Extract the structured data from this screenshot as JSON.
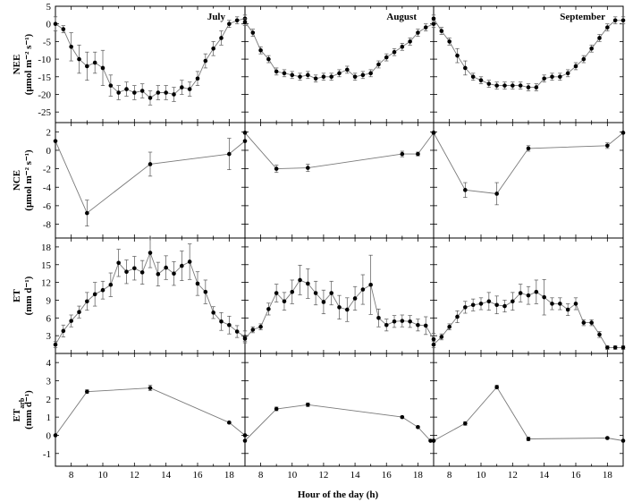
{
  "figure": {
    "x_label": "Hour of the day (h)",
    "months": [
      "July",
      "August",
      "September"
    ]
  },
  "chart_data": {
    "type": "line",
    "xlim": [
      7,
      19
    ],
    "x_ticks": [
      8,
      10,
      12,
      14,
      16,
      18
    ],
    "rows": [
      {
        "key": "NEE",
        "ylabel_main": "NEE",
        "ylabel_unit": "(μmol m⁻² s⁻¹)",
        "ylim": [
          -28,
          5
        ],
        "y_ticks": [
          5,
          0,
          -5,
          -10,
          -15,
          -20,
          -25
        ],
        "panels": [
          {
            "month": "July",
            "x": [
              7,
              7.5,
              8,
              8.5,
              9,
              9.5,
              10,
              10.5,
              11,
              11.5,
              12,
              12.5,
              13,
              13.5,
              14,
              14.5,
              15,
              15.5,
              16,
              16.5,
              17,
              17.5,
              18,
              18.5,
              19
            ],
            "y": [
              0,
              -1.5,
              -6.5,
              -10,
              -12,
              -11,
              -12.5,
              -17.5,
              -19.5,
              -18.5,
              -19.5,
              -19,
              -21,
              -19.5,
              -19.5,
              -20,
              -18,
              -18.5,
              -15.5,
              -10.5,
              -7,
              -4,
              0,
              1,
              1.5
            ],
            "err": [
              2,
              1,
              4,
              4,
              4,
              3,
              5,
              3,
              2,
              2,
              2,
              2,
              2,
              2,
              2,
              2,
              2,
              2,
              2,
              2,
              2,
              2,
              1,
              1,
              1
            ]
          },
          {
            "month": "August",
            "x": [
              7,
              7.5,
              8,
              8.5,
              9,
              9.5,
              10,
              10.5,
              11,
              11.5,
              12,
              12.5,
              13,
              13.5,
              14,
              14.5,
              15,
              15.5,
              16,
              16.5,
              17,
              17.5,
              18,
              18.5,
              19
            ],
            "y": [
              0.5,
              -2.5,
              -7.5,
              -10,
              -13.5,
              -14,
              -14.5,
              -15,
              -14.5,
              -15.5,
              -15,
              -15,
              -14,
              -13,
              -15,
              -14.5,
              -14,
              -11.5,
              -9.5,
              -8,
              -6.5,
              -5,
              -2.5,
              -1,
              0
            ],
            "err": [
              1,
              1,
              1,
              1,
              1,
              1,
              1,
              1,
              1,
              1,
              1,
              1,
              1,
              1,
              1,
              1,
              1,
              1,
              1,
              1,
              1,
              1,
              1,
              1,
              1
            ]
          },
          {
            "month": "September",
            "x": [
              7,
              7.5,
              8,
              8.5,
              9,
              9.5,
              10,
              10.5,
              11,
              11.5,
              12,
              12.5,
              13,
              13.5,
              14,
              14.5,
              15,
              15.5,
              16,
              16.5,
              17,
              17.5,
              18,
              18.5,
              19
            ],
            "y": [
              1.5,
              -2,
              -5,
              -9,
              -12.5,
              -15,
              -16,
              -17,
              -17.5,
              -17.5,
              -17.5,
              -17.5,
              -18,
              -18,
              -15.5,
              -15,
              -15,
              -14,
              -12,
              -10,
              -7,
              -4,
              -1,
              1,
              1
            ],
            "err": [
              1,
              1,
              1,
              2,
              2,
              1,
              1,
              1,
              1,
              1,
              1,
              1,
              1,
              1,
              1,
              1,
              1,
              1,
              1,
              1,
              1,
              1,
              1,
              1,
              1
            ]
          }
        ]
      },
      {
        "key": "NCE",
        "ylabel_main": "NCE",
        "ylabel_unit": "(μmol m⁻² s⁻¹)",
        "ylim": [
          -9.5,
          3
        ],
        "y_ticks": [
          2,
          0,
          -2,
          -4,
          -6,
          -8
        ],
        "panels": [
          {
            "month": "July",
            "x": [
              7,
              9,
              13,
              18,
              19
            ],
            "y": [
              1,
              -6.8,
              -1.5,
              -0.4,
              1
            ],
            "err": [
              0,
              1.4,
              1.3,
              1.7,
              0
            ]
          },
          {
            "month": "August",
            "x": [
              7,
              9,
              11,
              17,
              18,
              19
            ],
            "y": [
              1.9,
              -2,
              -1.9,
              -0.4,
              -0.4,
              1.9
            ],
            "err": [
              0,
              0.4,
              0.4,
              0.3,
              0.2,
              0
            ]
          },
          {
            "month": "September",
            "x": [
              7,
              9,
              11,
              13,
              18,
              19
            ],
            "y": [
              1.9,
              -4.3,
              -4.7,
              0.2,
              0.5,
              1.9
            ],
            "err": [
              0,
              0.8,
              1.2,
              0.3,
              0.3,
              0
            ]
          }
        ]
      },
      {
        "key": "ET",
        "ylabel_main": "ET",
        "ylabel_unit": "(mm d⁻¹)",
        "ylim": [
          0,
          19.5
        ],
        "y_ticks": [
          18,
          15,
          12,
          9,
          6,
          3
        ],
        "panels": [
          {
            "month": "July",
            "x": [
              7,
              7.5,
              8,
              8.5,
              9,
              9.5,
              10,
              10.5,
              11,
              11.5,
              12,
              12.5,
              13,
              13.5,
              14,
              14.5,
              15,
              15.5,
              16,
              16.5,
              17,
              17.5,
              18,
              18.5,
              19
            ],
            "y": [
              1.5,
              3.8,
              5.5,
              7,
              8.8,
              10,
              10.7,
              11.6,
              15.3,
              13.8,
              14.4,
              13.7,
              17,
              13.4,
              14.5,
              13.5,
              14.8,
              15.5,
              11.8,
              10.4,
              6.9,
              5.4,
              4.8,
              3.7,
              2.8
            ],
            "err": [
              0.5,
              1,
              1,
              1,
              1.5,
              2,
              1.5,
              2,
              2.3,
              2,
              2,
              2,
              2.5,
              2,
              2,
              2,
              2.5,
              3,
              2,
              2,
              1,
              1.5,
              1.5,
              1,
              1
            ]
          },
          {
            "month": "August",
            "x": [
              7,
              7.5,
              8,
              8.5,
              9,
              9.5,
              10,
              10.5,
              11,
              11.5,
              12,
              12.5,
              13,
              13.5,
              14,
              14.5,
              15,
              15.5,
              16,
              16.5,
              17,
              17.5,
              18,
              18.5,
              19
            ],
            "y": [
              2.5,
              4,
              4.5,
              7.5,
              10.2,
              8.8,
              10.4,
              12.4,
              11.8,
              10.2,
              8.7,
              10.2,
              7.8,
              7.4,
              9.3,
              10.8,
              11.6,
              6,
              4.8,
              5.4,
              5.5,
              5.4,
              4.8,
              4.7,
              2.4
            ],
            "err": [
              0.5,
              0.5,
              0.5,
              1,
              1.5,
              1.5,
              2,
              2.5,
              2.5,
              2,
              2,
              2,
              2,
              2,
              2,
              2.5,
              5,
              1.5,
              1,
              1,
              1,
              1,
              1,
              1.5,
              1
            ]
          },
          {
            "month": "September",
            "x": [
              7,
              7.5,
              8,
              8.5,
              9,
              9.5,
              10,
              10.5,
              11,
              11.5,
              12,
              12.5,
              13,
              13.5,
              14,
              14.5,
              15,
              15.5,
              16,
              16.5,
              17,
              17.5,
              18,
              18.5,
              19
            ],
            "y": [
              1.5,
              2.8,
              4.5,
              6.2,
              7.8,
              8.2,
              8.4,
              8.8,
              8.2,
              8,
              8.8,
              10.2,
              9.8,
              10.4,
              9.5,
              8.4,
              8.4,
              7.4,
              8.4,
              5.2,
              5.2,
              3.2,
              1,
              1,
              1
            ],
            "err": [
              0.5,
              0.5,
              0.5,
              1,
              1,
              1,
              1,
              1.5,
              1.5,
              1,
              1.5,
              1.5,
              1.5,
              2,
              3,
              1,
              1,
              1,
              1,
              0.5,
              0.5,
              0.5,
              0.3,
              0.3,
              0.3
            ]
          }
        ]
      },
      {
        "key": "ETarb",
        "ylabel_main": "ET",
        "ylabel_sub": "arb",
        "ylabel_unit": "(mm d⁻¹)",
        "ylim": [
          -1.7,
          4.5
        ],
        "y_ticks": [
          4,
          3,
          2,
          1,
          0,
          -1
        ],
        "panels": [
          {
            "month": "July",
            "x": [
              7,
              9,
              13,
              18,
              19
            ],
            "y": [
              0,
              2.4,
              2.6,
              0.7,
              0
            ],
            "err": [
              0,
              0.1,
              0.15,
              0.05,
              0
            ]
          },
          {
            "month": "August",
            "x": [
              7,
              9,
              11,
              17,
              18,
              18.8,
              19
            ],
            "y": [
              -0.3,
              1.45,
              1.68,
              1,
              0.45,
              -0.3,
              -0.3
            ],
            "err": [
              0,
              0.1,
              0.1,
              0.05,
              0.05,
              0,
              0
            ]
          },
          {
            "month": "September",
            "x": [
              7,
              9,
              11,
              13,
              18,
              19
            ],
            "y": [
              -0.3,
              0.65,
              2.65,
              -0.2,
              -0.15,
              -0.3
            ],
            "err": [
              0,
              0.1,
              0.1,
              0.1,
              0.05,
              0
            ]
          }
        ]
      }
    ]
  }
}
